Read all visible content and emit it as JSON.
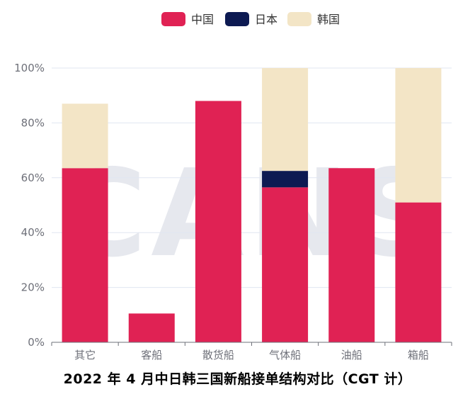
{
  "chart_data": {
    "type": "bar",
    "stacked": true,
    "title": "2022 年 4 月中日韩三国新船接单结构对比（CGT 计）",
    "watermark": "CANS",
    "categories": [
      "其它",
      "客船",
      "散货船",
      "气体船",
      "油船",
      "箱船"
    ],
    "series": [
      {
        "name": "中国",
        "color": "#e02254",
        "values": [
          63.5,
          10.5,
          88,
          56.5,
          63.5,
          51
        ]
      },
      {
        "name": "日本",
        "color": "#0d1a52",
        "values": [
          0,
          0,
          0,
          6,
          0,
          0
        ]
      },
      {
        "name": "韩国",
        "color": "#f3e5c6",
        "values": [
          23.5,
          0,
          0,
          37.5,
          0,
          49
        ]
      }
    ],
    "ylim": [
      0,
      100
    ],
    "yticks": [
      0,
      20,
      40,
      60,
      80,
      100
    ],
    "ytick_labels": [
      "0%",
      "20%",
      "40%",
      "60%",
      "80%",
      "100%"
    ],
    "xlabel": "",
    "ylabel": "",
    "grid": true,
    "legend_position": "top-center"
  }
}
